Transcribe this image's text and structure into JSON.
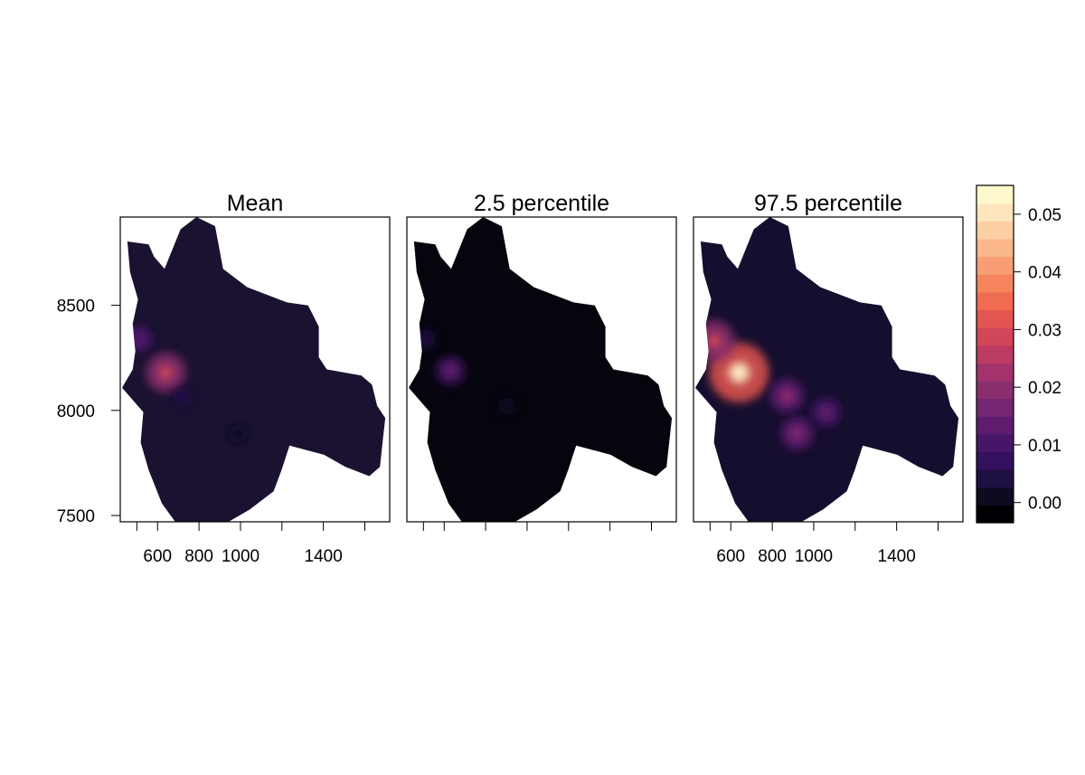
{
  "chart_data": {
    "type": "heatmap",
    "panels": [
      {
        "title": "Mean",
        "peak": 0.028,
        "x_tick_labels_shown": true,
        "hotspots": [
          {
            "x": 640,
            "y": 8180,
            "value": 0.028
          },
          {
            "x": 510,
            "y": 8340,
            "value": 0.014
          },
          {
            "x": 720,
            "y": 8060,
            "value": 0.006
          },
          {
            "x": 990,
            "y": 7890,
            "value": 0.004
          }
        ]
      },
      {
        "title": "2.5 percentile",
        "peak": 0.016,
        "x_tick_labels_shown": false,
        "hotspots": [
          {
            "x": 630,
            "y": 8190,
            "value": 0.016
          },
          {
            "x": 510,
            "y": 8340,
            "value": 0.006
          },
          {
            "x": 900,
            "y": 8020,
            "value": 0.003
          }
        ]
      },
      {
        "title": "97.5 percentile",
        "peak": 0.05,
        "x_tick_labels_shown": true,
        "hotspots": [
          {
            "x": 640,
            "y": 8180,
            "value": 0.05
          },
          {
            "x": 520,
            "y": 8330,
            "value": 0.03
          },
          {
            "x": 870,
            "y": 8070,
            "value": 0.022
          },
          {
            "x": 1060,
            "y": 7990,
            "value": 0.016
          },
          {
            "x": 920,
            "y": 7890,
            "value": 0.02
          }
        ]
      }
    ],
    "x_ticks": [
      600,
      800,
      1000,
      1400
    ],
    "y_ticks": [
      7500,
      8000,
      8500
    ],
    "xlim": [
      420,
      1720
    ],
    "ylim": [
      7470,
      8920
    ],
    "colorkey": {
      "ticks": [
        0.0,
        0.01,
        0.02,
        0.03,
        0.04,
        0.05
      ],
      "tick_labels": [
        "0.00",
        "0.01",
        "0.02",
        "0.03",
        "0.04",
        "0.05"
      ],
      "range": [
        -0.0035,
        0.055
      ],
      "colors": [
        "#000004",
        "#0e0a20",
        "#1e1040",
        "#33115e",
        "#481669",
        "#5f1c6f",
        "#742670",
        "#8b2e6e",
        "#a3336a",
        "#bb3b62",
        "#d14658",
        "#e35550",
        "#ef6b52",
        "#f6855e",
        "#f99e74",
        "#fbb78c",
        "#fccfa5",
        "#fde6bd",
        "#fdf9cd"
      ]
    },
    "background_colors": {
      "mean": "#1a1230",
      "lower": "#06050e",
      "upper": "#150e2e"
    }
  }
}
